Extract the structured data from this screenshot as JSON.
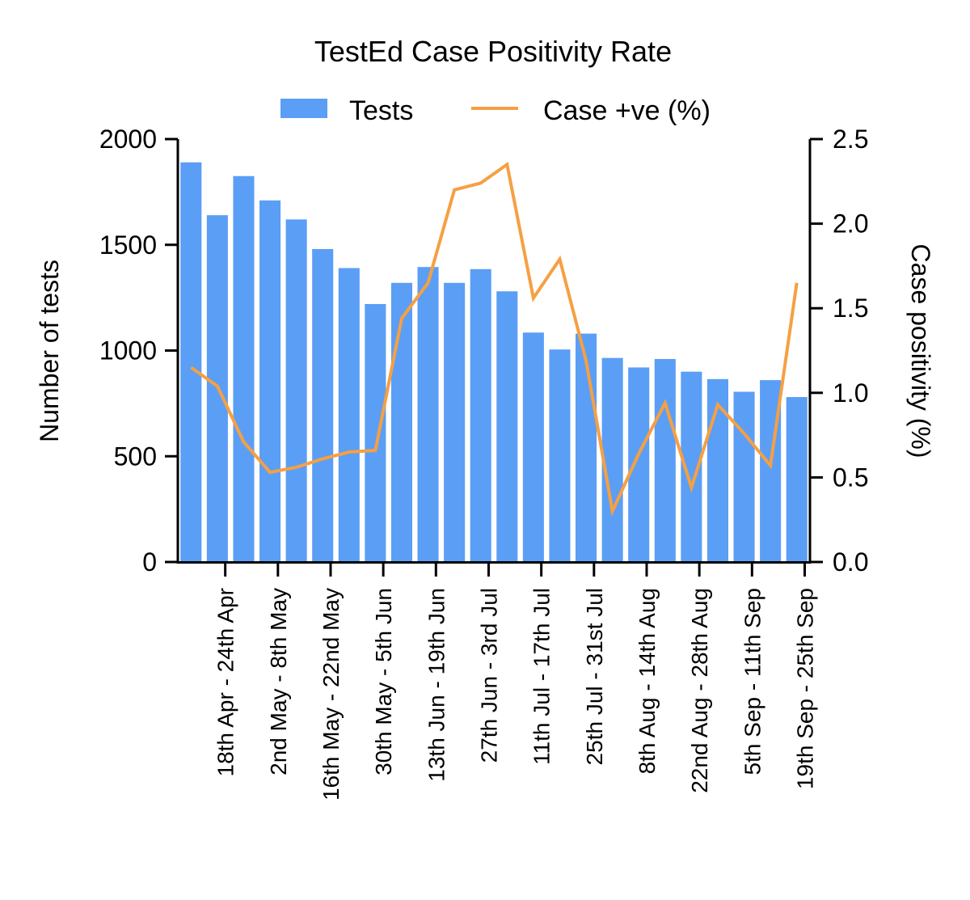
{
  "chart_data": {
    "type": "bar",
    "title": "TestEd Case Positivity Rate",
    "legend": {
      "placement": "top-center",
      "entries": [
        {
          "label": "Tests",
          "kind": "bar"
        },
        {
          "label": "Case +ve (%)",
          "kind": "line"
        }
      ]
    },
    "ylabel": "Number of tests",
    "ylabel_right": "Case positivity (%)",
    "ylim": [
      0,
      2000
    ],
    "yticks": [
      0,
      500,
      1000,
      1500,
      2000
    ],
    "ylim_right": [
      0,
      2.5
    ],
    "yticks_right": [
      "0.0",
      "0.5",
      "1.0",
      "1.5",
      "2.0",
      "2.5"
    ],
    "tick_labels": [
      "18th Apr - 24th Apr",
      "2nd May - 8th May",
      "16th May - 22nd May",
      "30th May - 5th Jun",
      "13th Jun - 19th Jun",
      "27th Jun - 3rd Jul",
      "11th Jul - 17th Jul",
      "25th Jul - 31st Jul",
      "8th Aug - 14th Aug",
      "22nd Aug - 28th Aug",
      "5th Sep - 11th Sep",
      "19th Sep - 25th Sep"
    ],
    "series": [
      {
        "name": "Tests",
        "type": "bar",
        "axis": "left",
        "color": "#5b9ef5",
        "values": [
          1890,
          1640,
          1825,
          1710,
          1620,
          1480,
          1390,
          1220,
          1320,
          1395,
          1320,
          1385,
          1280,
          1085,
          1005,
          1080,
          965,
          920,
          960,
          900,
          865,
          805,
          860,
          780
        ]
      },
      {
        "name": "Case +ve (%)",
        "type": "line",
        "axis": "right",
        "color": "#f5a043",
        "values": [
          1.15,
          1.04,
          0.71,
          0.53,
          0.56,
          0.61,
          0.65,
          0.66,
          1.44,
          1.65,
          2.2,
          2.24,
          2.35,
          1.56,
          1.79,
          1.19,
          0.3,
          0.64,
          0.94,
          0.44,
          0.93,
          0.76,
          0.57,
          1.65
        ]
      }
    ],
    "grid": false
  }
}
